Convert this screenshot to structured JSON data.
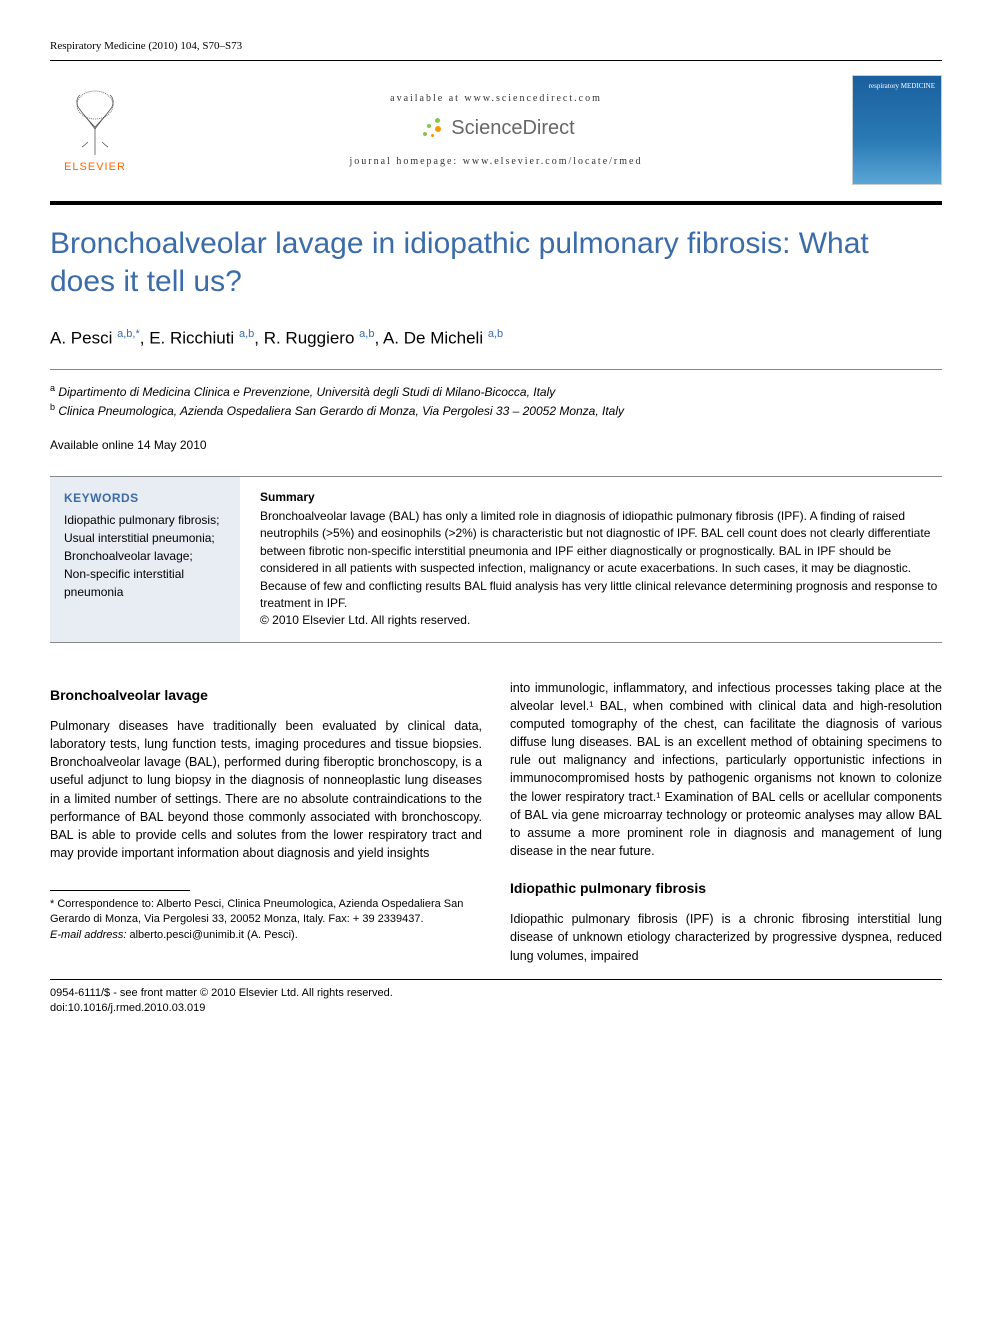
{
  "journal_ref": "Respiratory Medicine (2010) 104, S70–S73",
  "header": {
    "available_at": "available at www.sciencedirect.com",
    "sciencedirect": "ScienceDirect",
    "homepage": "journal homepage: www.elsevier.com/locate/rmed",
    "elsevier_label": "ELSEVIER",
    "cover_title": "respiratory MEDICINE"
  },
  "title": "Bronchoalveolar lavage in idiopathic pulmonary fibrosis: What does it tell us?",
  "authors": [
    {
      "name": "A. Pesci",
      "sup": "a,b,*"
    },
    {
      "name": "E. Ricchiuti",
      "sup": "a,b"
    },
    {
      "name": "R. Ruggiero",
      "sup": "a,b"
    },
    {
      "name": "A. De Micheli",
      "sup": "a,b"
    }
  ],
  "affiliations": [
    {
      "sup": "a",
      "text": "Dipartimento di Medicina Clinica e Prevenzione, Università degli Studi di Milano-Bicocca, Italy"
    },
    {
      "sup": "b",
      "text": "Clinica Pneumologica, Azienda Ospedaliera San Gerardo di Monza, Via Pergolesi 33 – 20052 Monza, Italy"
    }
  ],
  "available_online": "Available online 14 May 2010",
  "keywords_heading": "KEYWORDS",
  "keywords": "Idiopathic pulmonary fibrosis;\nUsual interstitial pneumonia;\nBronchoalveolar lavage;\nNon-specific interstitial pneumonia",
  "summary_heading": "Summary",
  "summary": "Bronchoalveolar lavage (BAL) has only a limited role in diagnosis of idiopathic pulmonary fibrosis (IPF). A finding of raised neutrophils (>5%) and eosinophils (>2%) is characteristic but not diagnostic of IPF. BAL cell count does not clearly differentiate between fibrotic non-specific interstitial pneumonia and IPF either diagnostically or prognostically. BAL in IPF should be considered in all patients with suspected infection, malignancy or acute exacerbations. In such cases, it may be diagnostic. Because of few and conflicting results BAL fluid analysis has very little clinical relevance determining prognosis and response to treatment in IPF.",
  "summary_copyright": "© 2010 Elsevier Ltd. All rights reserved.",
  "sections": {
    "left": {
      "heading": "Bronchoalveolar lavage",
      "para": "Pulmonary diseases have traditionally been evaluated by clinical data, laboratory tests, lung function tests, imaging procedures and tissue biopsies. Bronchoalveolar lavage (BAL), performed during fiberoptic bronchoscopy, is a useful adjunct to lung biopsy in the diagnosis of nonneoplastic lung diseases in a limited number of settings. There are no absolute contraindications to the performance of BAL beyond those commonly associated with bronchoscopy. BAL is able to provide cells and solutes from the lower respiratory tract and may provide important information about diagnosis and yield insights"
    },
    "right_top": "into immunologic, inflammatory, and infectious processes taking place at the alveolar level.¹ BAL, when combined with clinical data and high-resolution computed tomography of the chest, can facilitate the diagnosis of various diffuse lung diseases. BAL is an excellent method of obtaining specimens to rule out malignancy and infections, particularly opportunistic infections in immunocompromised hosts by pathogenic organisms not known to colonize the lower respiratory tract.¹ Examination of BAL cells or acellular components of BAL via gene microarray technology or proteomic analyses may allow BAL to assume a more prominent role in diagnosis and management of lung disease in the near future.",
    "right": {
      "heading": "Idiopathic pulmonary fibrosis",
      "para": "Idiopathic pulmonary fibrosis (IPF) is a chronic fibrosing interstitial lung disease of unknown etiology characterized by progressive dyspnea, reduced lung volumes, impaired"
    }
  },
  "footnote": {
    "correspondence": "* Correspondence to: Alberto Pesci, Clinica Pneumologica, Azienda Ospedaliera San Gerardo di Monza, Via Pergolesi 33, 20052 Monza, Italy. Fax: + 39 2339437.",
    "email_label": "E-mail address:",
    "email": "alberto.pesci@unimib.it",
    "email_suffix": "(A. Pesci)."
  },
  "footer": {
    "line1": "0954-6111/$ - see front matter © 2010 Elsevier Ltd. All rights reserved.",
    "line2": "doi:10.1016/j.rmed.2010.03.019"
  },
  "colors": {
    "title_color": "#3b6ca8",
    "elsevier_orange": "#ff6600",
    "keywords_bg": "#e8ecf3"
  }
}
